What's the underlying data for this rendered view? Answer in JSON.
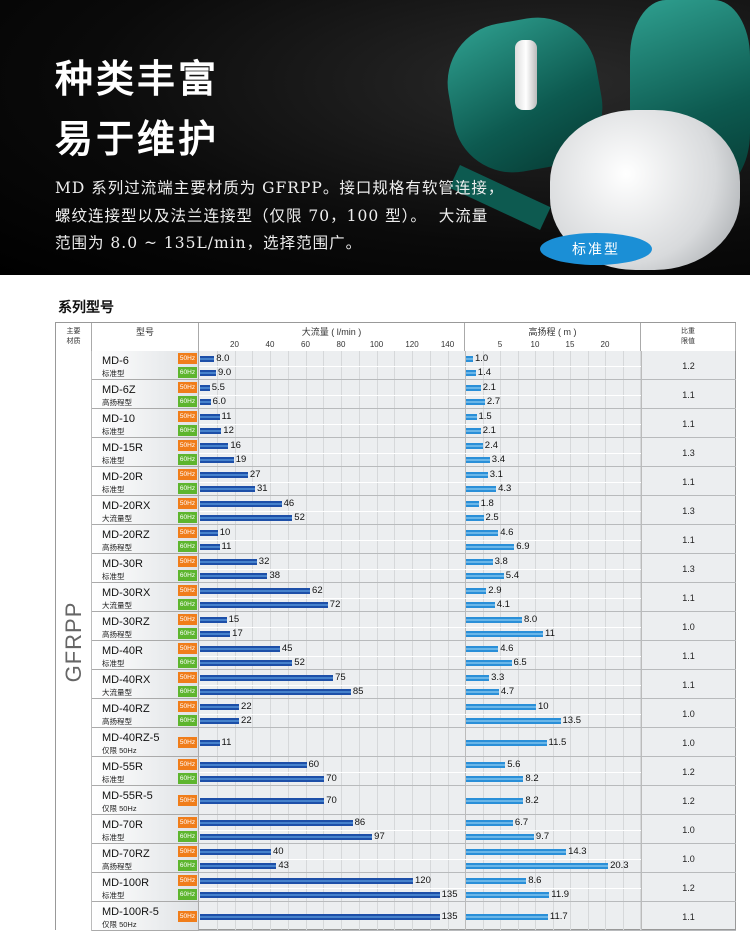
{
  "banner": {
    "title1": "种类丰富",
    "title2": "易于维护",
    "lines": [
      "MD 系列过流端主要材质为 GFRPP。接口规格有软管连接，",
      "螺纹连接型以及法兰连接型（仅限 70，100 型）。  大流量",
      "范围为 8.0 ~ 135L/min，选择范围广。"
    ],
    "badge": "标准型"
  },
  "section_title": "系列型号",
  "chart_data": {
    "type": "table",
    "headers": {
      "material": "主要\n材质",
      "model": "型号",
      "flow": "大流量 ( l/min )",
      "head": "高扬程 ( m )",
      "ratio": "比重\n限值"
    },
    "material": "GFRPP",
    "flow_axis": {
      "ticks": [
        20,
        40,
        60,
        80,
        100,
        120,
        140
      ],
      "range": [
        0,
        150
      ]
    },
    "head_axis": {
      "ticks": [
        5,
        10,
        15,
        20
      ],
      "range": [
        0,
        25
      ]
    },
    "colors": {
      "50Hz": "#f07d1a",
      "60Hz": "#5db52e",
      "flow_bar": "#1d4fa8",
      "head_bar": "#2a8fd8"
    },
    "models": [
      {
        "name": "MD-6",
        "sub": "标准型",
        "ratio": "1.2",
        "rows": [
          {
            "hz": "50Hz",
            "flow": 8.0,
            "flow_label": "8.0",
            "head": 1.0,
            "head_label": "1.0"
          },
          {
            "hz": "60Hz",
            "flow": 9.0,
            "flow_label": "9.0",
            "head": 1.4,
            "head_label": "1.4"
          }
        ]
      },
      {
        "name": "MD-6Z",
        "sub": "高扬程型",
        "ratio": "1.1",
        "rows": [
          {
            "hz": "50Hz",
            "flow": 5.5,
            "flow_label": "5.5",
            "head": 2.1,
            "head_label": "2.1"
          },
          {
            "hz": "60Hz",
            "flow": 6.0,
            "flow_label": "6.0",
            "head": 2.7,
            "head_label": "2.7"
          }
        ]
      },
      {
        "name": "MD-10",
        "sub": "标准型",
        "ratio": "1.1",
        "rows": [
          {
            "hz": "50Hz",
            "flow": 11,
            "flow_label": "11",
            "head": 1.5,
            "head_label": "1.5"
          },
          {
            "hz": "60Hz",
            "flow": 12,
            "flow_label": "12",
            "head": 2.1,
            "head_label": "2.1"
          }
        ]
      },
      {
        "name": "MD-15R",
        "sub": "标准型",
        "ratio": "1.3",
        "rows": [
          {
            "hz": "50Hz",
            "flow": 16,
            "flow_label": "16",
            "head": 2.4,
            "head_label": "2.4"
          },
          {
            "hz": "60Hz",
            "flow": 19,
            "flow_label": "19",
            "head": 3.4,
            "head_label": "3.4"
          }
        ]
      },
      {
        "name": "MD-20R",
        "sub": "标准型",
        "ratio": "1.1",
        "rows": [
          {
            "hz": "50Hz",
            "flow": 27,
            "flow_label": "27",
            "head": 3.1,
            "head_label": "3.1"
          },
          {
            "hz": "60Hz",
            "flow": 31,
            "flow_label": "31",
            "head": 4.3,
            "head_label": "4.3"
          }
        ]
      },
      {
        "name": "MD-20RX",
        "sub": "大流量型",
        "ratio": "1.3",
        "rows": [
          {
            "hz": "50Hz",
            "flow": 46,
            "flow_label": "46",
            "head": 1.8,
            "head_label": "1.8"
          },
          {
            "hz": "60Hz",
            "flow": 52,
            "flow_label": "52",
            "head": 2.5,
            "head_label": "2.5"
          }
        ]
      },
      {
        "name": "MD-20RZ",
        "sub": "高扬程型",
        "ratio": "1.1",
        "rows": [
          {
            "hz": "50Hz",
            "flow": 10,
            "flow_label": "10",
            "head": 4.6,
            "head_label": "4.6"
          },
          {
            "hz": "60Hz",
            "flow": 11,
            "flow_label": "11",
            "head": 6.9,
            "head_label": "6.9"
          }
        ]
      },
      {
        "name": "MD-30R",
        "sub": "标准型",
        "ratio": "1.3",
        "rows": [
          {
            "hz": "50Hz",
            "flow": 32,
            "flow_label": "32",
            "head": 3.8,
            "head_label": "3.8"
          },
          {
            "hz": "60Hz",
            "flow": 38,
            "flow_label": "38",
            "head": 5.4,
            "head_label": "5.4"
          }
        ]
      },
      {
        "name": "MD-30RX",
        "sub": "大流量型",
        "ratio": "1.1",
        "rows": [
          {
            "hz": "50Hz",
            "flow": 62,
            "flow_label": "62",
            "head": 2.9,
            "head_label": "2.9"
          },
          {
            "hz": "60Hz",
            "flow": 72,
            "flow_label": "72",
            "head": 4.1,
            "head_label": "4.1"
          }
        ]
      },
      {
        "name": "MD-30RZ",
        "sub": "高扬程型",
        "ratio": "1.0",
        "rows": [
          {
            "hz": "50Hz",
            "flow": 15,
            "flow_label": "15",
            "head": 8.0,
            "head_label": "8.0"
          },
          {
            "hz": "60Hz",
            "flow": 17,
            "flow_label": "17",
            "head": 11,
            "head_label": "11"
          }
        ]
      },
      {
        "name": "MD-40R",
        "sub": "标准型",
        "ratio": "1.1",
        "rows": [
          {
            "hz": "50Hz",
            "flow": 45,
            "flow_label": "45",
            "head": 4.6,
            "head_label": "4.6"
          },
          {
            "hz": "60Hz",
            "flow": 52,
            "flow_label": "52",
            "head": 6.5,
            "head_label": "6.5"
          }
        ]
      },
      {
        "name": "MD-40RX",
        "sub": "大流量型",
        "ratio": "1.1",
        "rows": [
          {
            "hz": "50Hz",
            "flow": 75,
            "flow_label": "75",
            "head": 3.3,
            "head_label": "3.3"
          },
          {
            "hz": "60Hz",
            "flow": 85,
            "flow_label": "85",
            "head": 4.7,
            "head_label": "4.7"
          }
        ]
      },
      {
        "name": "MD-40RZ",
        "sub": "高扬程型",
        "ratio": "1.0",
        "rows": [
          {
            "hz": "50Hz",
            "flow": 22,
            "flow_label": "22",
            "head": 10,
            "head_label": "10"
          },
          {
            "hz": "60Hz",
            "flow": 22,
            "flow_label": "22",
            "head": 13.5,
            "head_label": "13.5"
          }
        ]
      },
      {
        "name": "MD-40RZ-5",
        "sub": "仅限 50Hz",
        "ratio": "1.0",
        "rows": [
          {
            "hz": "50Hz",
            "flow": 11,
            "flow_label": "11",
            "head": 11.5,
            "head_label": "11.5"
          }
        ]
      },
      {
        "name": "MD-55R",
        "sub": "标准型",
        "ratio": "1.2",
        "rows": [
          {
            "hz": "50Hz",
            "flow": 60,
            "flow_label": "60",
            "head": 5.6,
            "head_label": "5.6"
          },
          {
            "hz": "60Hz",
            "flow": 70,
            "flow_label": "70",
            "head": 8.2,
            "head_label": "8.2"
          }
        ]
      },
      {
        "name": "MD-55R-5",
        "sub": "仅限 50Hz",
        "ratio": "1.2",
        "rows": [
          {
            "hz": "50Hz",
            "flow": 70,
            "flow_label": "70",
            "head": 8.2,
            "head_label": "8.2"
          }
        ]
      },
      {
        "name": "MD-70R",
        "sub": "标准型",
        "ratio": "1.0",
        "rows": [
          {
            "hz": "50Hz",
            "flow": 86,
            "flow_label": "86",
            "head": 6.7,
            "head_label": "6.7"
          },
          {
            "hz": "60Hz",
            "flow": 97,
            "flow_label": "97",
            "head": 9.7,
            "head_label": "9.7"
          }
        ]
      },
      {
        "name": "MD-70RZ",
        "sub": "高扬程型",
        "ratio": "1.0",
        "rows": [
          {
            "hz": "50Hz",
            "flow": 40,
            "flow_label": "40",
            "head": 14.3,
            "head_label": "14.3"
          },
          {
            "hz": "60Hz",
            "flow": 43,
            "flow_label": "43",
            "head": 20.3,
            "head_label": "20.3"
          }
        ]
      },
      {
        "name": "MD-100R",
        "sub": "标准型",
        "ratio": "1.2",
        "rows": [
          {
            "hz": "50Hz",
            "flow": 120,
            "flow_label": "120",
            "head": 8.6,
            "head_label": "8.6"
          },
          {
            "hz": "60Hz",
            "flow": 135,
            "flow_label": "135",
            "head": 11.9,
            "head_label": "11.9"
          }
        ]
      },
      {
        "name": "MD-100R-5",
        "sub": "仅限 50Hz",
        "ratio": "1.1",
        "rows": [
          {
            "hz": "50Hz",
            "flow": 135,
            "flow_label": "135",
            "head": 11.7,
            "head_label": "11.7"
          }
        ]
      }
    ]
  }
}
